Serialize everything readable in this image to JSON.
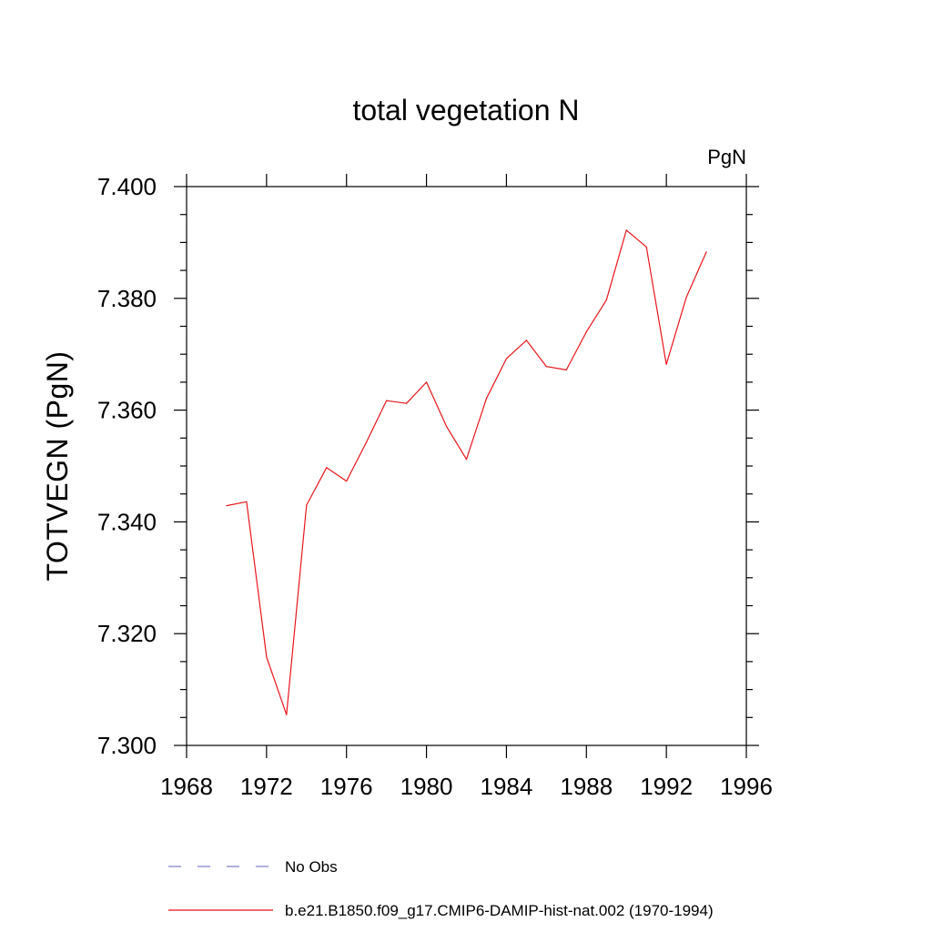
{
  "chart_data": {
    "type": "line",
    "title": "total vegetation N",
    "units_label": "PgN",
    "xlabel": "",
    "ylabel": "TOTVEGN  (PgN)",
    "xlim": [
      1968,
      1996
    ],
    "ylim": [
      7.3,
      7.4
    ],
    "x_ticks": [
      1968,
      1972,
      1976,
      1980,
      1984,
      1988,
      1992,
      1996
    ],
    "x_tick_labels": [
      "1968",
      "1972",
      "1976",
      "1980",
      "1984",
      "1988",
      "1992",
      "1996"
    ],
    "y_ticks": [
      7.3,
      7.32,
      7.34,
      7.36,
      7.38,
      7.4
    ],
    "y_tick_labels": [
      "7.300",
      "7.320",
      "7.340",
      "7.360",
      "7.380",
      "7.400"
    ],
    "grid": false,
    "legend_position": "bottom",
    "series": [
      {
        "name": "b.e21.B1850.f09_g17.CMIP6-DAMIP-hist-nat.002 (1970-1994)",
        "color": "#e8151b",
        "dash": "solid",
        "x": [
          1970,
          1971,
          1972,
          1973,
          1974,
          1975,
          1976,
          1977,
          1978,
          1979,
          1980,
          1981,
          1982,
          1983,
          1984,
          1985,
          1986,
          1987,
          1988,
          1989,
          1990,
          1991,
          1992,
          1993,
          1994
        ],
        "values": [
          7.3429,
          7.3436,
          7.3158,
          7.3055,
          7.343,
          7.3497,
          7.3473,
          7.3543,
          7.3617,
          7.3612,
          7.365,
          7.3571,
          7.3512,
          7.3621,
          7.3692,
          7.3725,
          7.3678,
          7.3672,
          7.374,
          7.3797,
          7.3922,
          7.3892,
          7.3682,
          7.3802,
          7.3883
        ]
      }
    ],
    "legend": [
      {
        "label": "No Obs",
        "color": "#8080c8",
        "dash": "dashed"
      },
      {
        "label": "b.e21.B1850.f09_g17.CMIP6-DAMIP-hist-nat.002 (1970-1994)",
        "color": "#e8151b",
        "dash": "solid"
      }
    ]
  }
}
